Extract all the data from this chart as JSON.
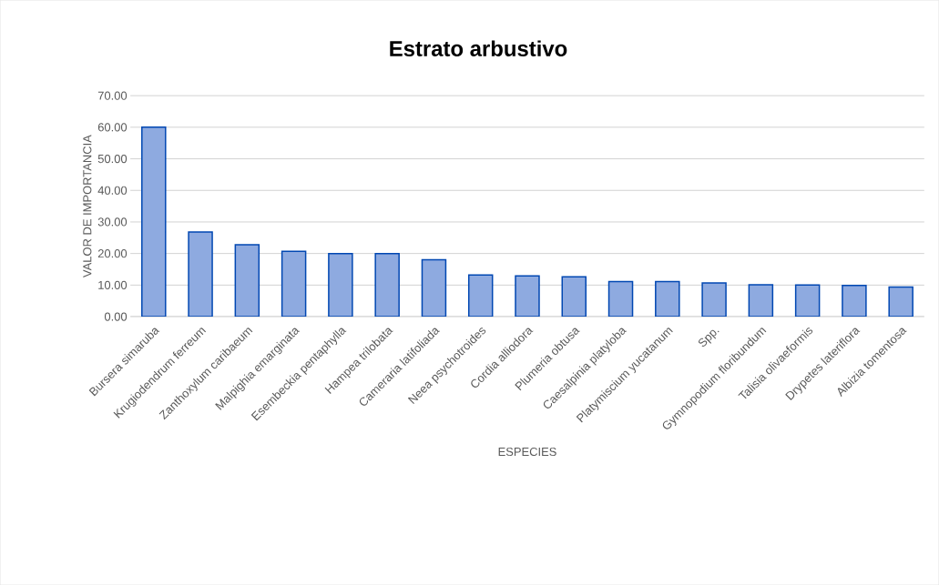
{
  "chart_data": {
    "type": "bar",
    "title": "Estrato arbustivo",
    "xlabel": "ESPECIES",
    "ylabel": "VALOR DE IMPORTANCIA",
    "categories": [
      "Bursera simaruba",
      "Krugiodendrum ferreum",
      "Zanthoxylum caribaeum",
      "Malpighia emarginata",
      "Esembeckia pentaphylla",
      "Hampea trilobata",
      "Cameraria latifoliada",
      "Neea psychotroides",
      "Cordia alliodora",
      "Plumeria obtusa",
      "Caesalpinia platyloba",
      "Platymiscium yucatanum",
      "Spp.",
      "Gymnopodium floribundum",
      "Talisia olivaeformis",
      "Drypetes lateriflora",
      "Albizia tomentosa"
    ],
    "values": [
      60.0,
      26.8,
      22.8,
      20.7,
      20.0,
      20.0,
      18.0,
      13.2,
      12.9,
      12.6,
      11.1,
      11.1,
      10.7,
      10.1,
      10.0,
      9.9,
      9.4
    ],
    "color": "#8eaae0",
    "ylim": [
      0,
      70
    ],
    "yticks": [
      {
        "value": 0,
        "label": "0.00"
      },
      {
        "value": 10,
        "label": "10.00"
      },
      {
        "value": 20,
        "label": "20.00"
      },
      {
        "value": 30,
        "label": "30.00"
      },
      {
        "value": 40,
        "label": "40.00"
      },
      {
        "value": 50,
        "label": "50.00"
      },
      {
        "value": 60,
        "label": "60.00"
      },
      {
        "value": 70,
        "label": "70.00"
      }
    ],
    "grid": "y"
  }
}
